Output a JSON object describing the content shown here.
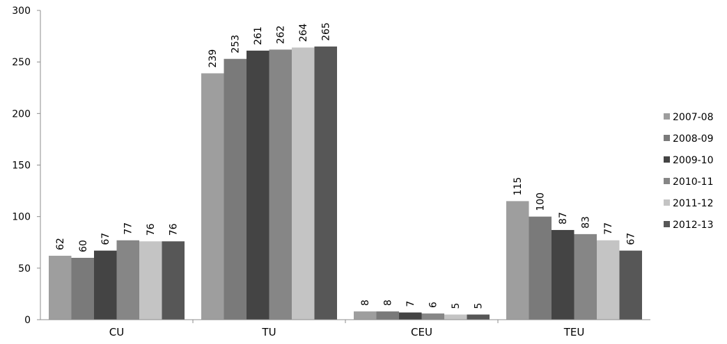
{
  "chart_data": {
    "type": "bar",
    "categories": [
      "CU",
      "TU",
      "CEU",
      "TEU"
    ],
    "series": [
      {
        "name": "2007-08",
        "color": "#9e9e9e",
        "values": [
          62,
          239,
          8,
          115
        ]
      },
      {
        "name": "2008-09",
        "color": "#7a7a7a",
        "values": [
          60,
          253,
          8,
          100
        ]
      },
      {
        "name": "2009-10",
        "color": "#444444",
        "values": [
          67,
          261,
          7,
          87
        ]
      },
      {
        "name": "2010-11",
        "color": "#868686",
        "values": [
          77,
          262,
          6,
          83
        ]
      },
      {
        "name": "2011-12",
        "color": "#c4c4c4",
        "values": [
          76,
          264,
          5,
          77
        ]
      },
      {
        "name": "2012-13",
        "color": "#575757",
        "values": [
          76,
          265,
          5,
          67
        ]
      }
    ],
    "ylim": [
      0,
      300
    ],
    "yticks": [
      0,
      50,
      100,
      150,
      200,
      250,
      300
    ],
    "grid": false,
    "legend_position": "right",
    "data_labels": true
  }
}
